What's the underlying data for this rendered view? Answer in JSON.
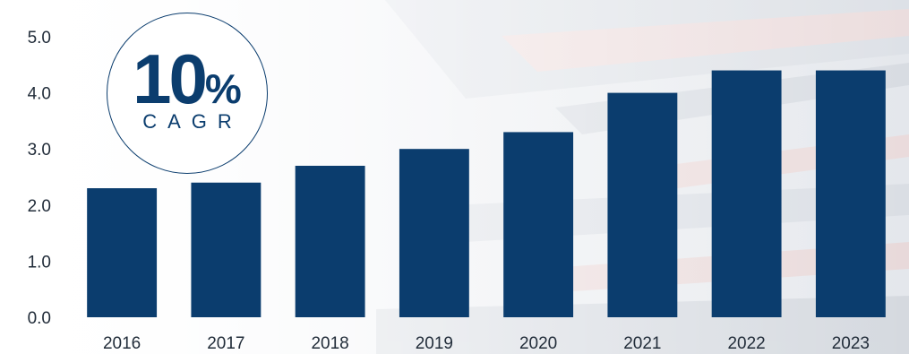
{
  "chart_data": {
    "type": "bar",
    "categories": [
      "2016",
      "2017",
      "2018",
      "2019",
      "2020",
      "2021",
      "2022",
      "2023"
    ],
    "values": [
      2.3,
      2.4,
      2.7,
      3.0,
      3.3,
      4.0,
      4.4,
      4.4
    ],
    "title": "",
    "xlabel": "",
    "ylabel": "",
    "ylim": [
      0,
      5
    ],
    "yticks": [
      "0.0",
      "1.0",
      "2.0",
      "3.0",
      "4.0",
      "5.0"
    ],
    "grid": false,
    "legend": "none",
    "bar_color": "#0b3d6e"
  },
  "annotation": {
    "cagr_number": "10",
    "cagr_percent": "%",
    "cagr_label": "CAGR"
  }
}
